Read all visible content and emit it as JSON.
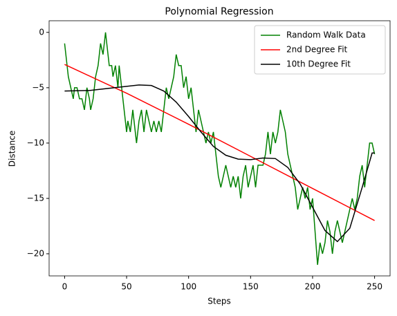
{
  "chart_data": {
    "type": "line",
    "title": "Polynomial Regression",
    "xlabel": "Steps",
    "ylabel": "Distance",
    "xlim": [
      -12.5,
      262.5
    ],
    "ylim": [
      -22,
      1.05
    ],
    "xticks": [
      0,
      50,
      100,
      150,
      200,
      250
    ],
    "yticks": [
      {
        "value": -20,
        "label": "−20"
      },
      {
        "value": -15,
        "label": "−15"
      },
      {
        "value": -10,
        "label": "−10"
      },
      {
        "value": -5,
        "label": "−5"
      },
      0
    ],
    "legend": "upper right",
    "series": [
      {
        "name": "Random Walk Data",
        "color": "#008000",
        "x": [
          0,
          3,
          5,
          7,
          8,
          10,
          12,
          14,
          16,
          18,
          20,
          21,
          23,
          25,
          27,
          29,
          31,
          32,
          33,
          35,
          36,
          38,
          39,
          41,
          43,
          44,
          46,
          48,
          50,
          51,
          53,
          55,
          57,
          58,
          60,
          62,
          64,
          66,
          68,
          70,
          72,
          74,
          76,
          78,
          80,
          82,
          84,
          86,
          88,
          90,
          92,
          94,
          96,
          98,
          100,
          102,
          104,
          106,
          108,
          110,
          112,
          114,
          116,
          118,
          120,
          122,
          124,
          126,
          128,
          130,
          132,
          134,
          136,
          138,
          140,
          142,
          144,
          146,
          148,
          150,
          152,
          154,
          156,
          158,
          160,
          162,
          164,
          166,
          168,
          170,
          172,
          174,
          176,
          178,
          180,
          182,
          184,
          186,
          188,
          190,
          192,
          194,
          196,
          198,
          200,
          202,
          204,
          206,
          208,
          210,
          212,
          214,
          216,
          218,
          220,
          222,
          224,
          226,
          228,
          230,
          232,
          234,
          236,
          238,
          240,
          242,
          244,
          246,
          248,
          250
        ],
        "values": [
          -1,
          -4,
          -5,
          -6,
          -5,
          -5,
          -6,
          -6,
          -7,
          -5,
          -6,
          -7,
          -6,
          -4,
          -3,
          -1,
          -2,
          -1,
          0,
          -2,
          -3,
          -3,
          -4,
          -3,
          -5,
          -3,
          -5,
          -7,
          -9,
          -8,
          -9,
          -7,
          -9,
          -10,
          -8,
          -7,
          -9,
          -7,
          -8,
          -9,
          -8,
          -9,
          -8,
          -9,
          -7,
          -5,
          -6,
          -5,
          -4,
          -2,
          -3,
          -3,
          -5,
          -4,
          -6,
          -5,
          -7,
          -9,
          -7,
          -8,
          -9,
          -10,
          -9,
          -10,
          -9,
          -11,
          -13,
          -14,
          -13,
          -12,
          -13,
          -14,
          -13,
          -14,
          -13,
          -15,
          -13,
          -12,
          -14,
          -13,
          -12,
          -14,
          -12,
          -12,
          -12,
          -11,
          -9,
          -11,
          -9,
          -10,
          -9,
          -7,
          -8,
          -9,
          -11,
          -12,
          -13,
          -14,
          -16,
          -15,
          -14,
          -15,
          -14,
          -16,
          -15,
          -18,
          -21,
          -19,
          -20,
          -19,
          -17,
          -18,
          -20,
          -18,
          -17,
          -18,
          -19,
          -18,
          -17,
          -16,
          -15,
          -16,
          -15,
          -13,
          -12,
          -14,
          -12,
          -10,
          -10,
          -11
        ]
      },
      {
        "name": "2nd Degree Fit",
        "color": "#ff0000",
        "x": [
          0,
          50,
          100,
          150,
          200,
          250
        ],
        "values": [
          -2.9,
          -5.5,
          -8.3,
          -11.2,
          -14.1,
          -17
        ]
      },
      {
        "name": "10th Degree Fit",
        "color": "#000000",
        "x": [
          0,
          20,
          40,
          60,
          70,
          80,
          90,
          100,
          110,
          120,
          130,
          140,
          150,
          160,
          170,
          180,
          190,
          200,
          210,
          220,
          230,
          240,
          248,
          250
        ],
        "values": [
          -5.3,
          -5.25,
          -5.0,
          -4.75,
          -4.8,
          -5.3,
          -6.3,
          -7.6,
          -9.0,
          -10.3,
          -11.1,
          -11.45,
          -11.5,
          -11.35,
          -11.4,
          -12.2,
          -13.7,
          -15.8,
          -17.9,
          -18.9,
          -17.7,
          -14.0,
          -10.9,
          -10.9
        ]
      }
    ]
  }
}
